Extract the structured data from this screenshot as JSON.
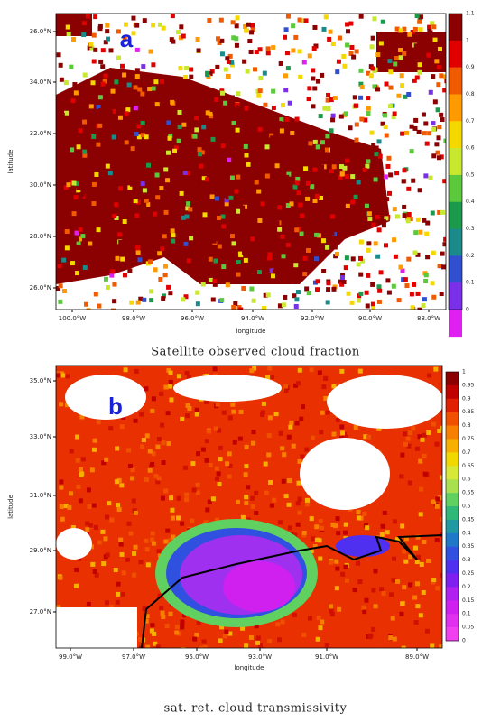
{
  "panels": [
    {
      "label": "a",
      "xlabel": "longitude",
      "ylabel": "latitude",
      "xticks": [
        "100.0°W",
        "98.0°W",
        "96.0°W",
        "94.0°W",
        "92.0°W",
        "90.0°W",
        "88.0°W"
      ],
      "yticks": [
        "36.0°N",
        "34.0°N",
        "32.0°N",
        "30.0°N",
        "28.0°N",
        "26.0°N"
      ],
      "colorbar": [
        "1.1",
        "1",
        "0.9",
        "0.8",
        "0.7",
        "0.6",
        "0.5",
        "0.4",
        "0.3",
        "0.2",
        "0.1",
        "0"
      ],
      "caption": "Satellite observed cloud fraction"
    },
    {
      "label": "b",
      "xlabel": "longitude",
      "ylabel": "latitude",
      "xticks": [
        "99.0°W",
        "97.0°W",
        "95.0°W",
        "93.0°W",
        "91.0°W",
        "89.0°W"
      ],
      "yticks": [
        "35.0°N",
        "33.0°N",
        "31.0°N",
        "29.0°N",
        "27.0°N"
      ],
      "colorbar": [
        "1",
        "0.95",
        "0.9",
        "0.85",
        "0.8",
        "0.75",
        "0.7",
        "0.65",
        "0.6",
        "0.55",
        "0.5",
        "0.45",
        "0.4",
        "0.35",
        "0.3",
        "0.25",
        "0.2",
        "0.15",
        "0.1",
        "0.05",
        "0"
      ],
      "caption": "sat. ret. cloud transmissivity"
    }
  ]
}
